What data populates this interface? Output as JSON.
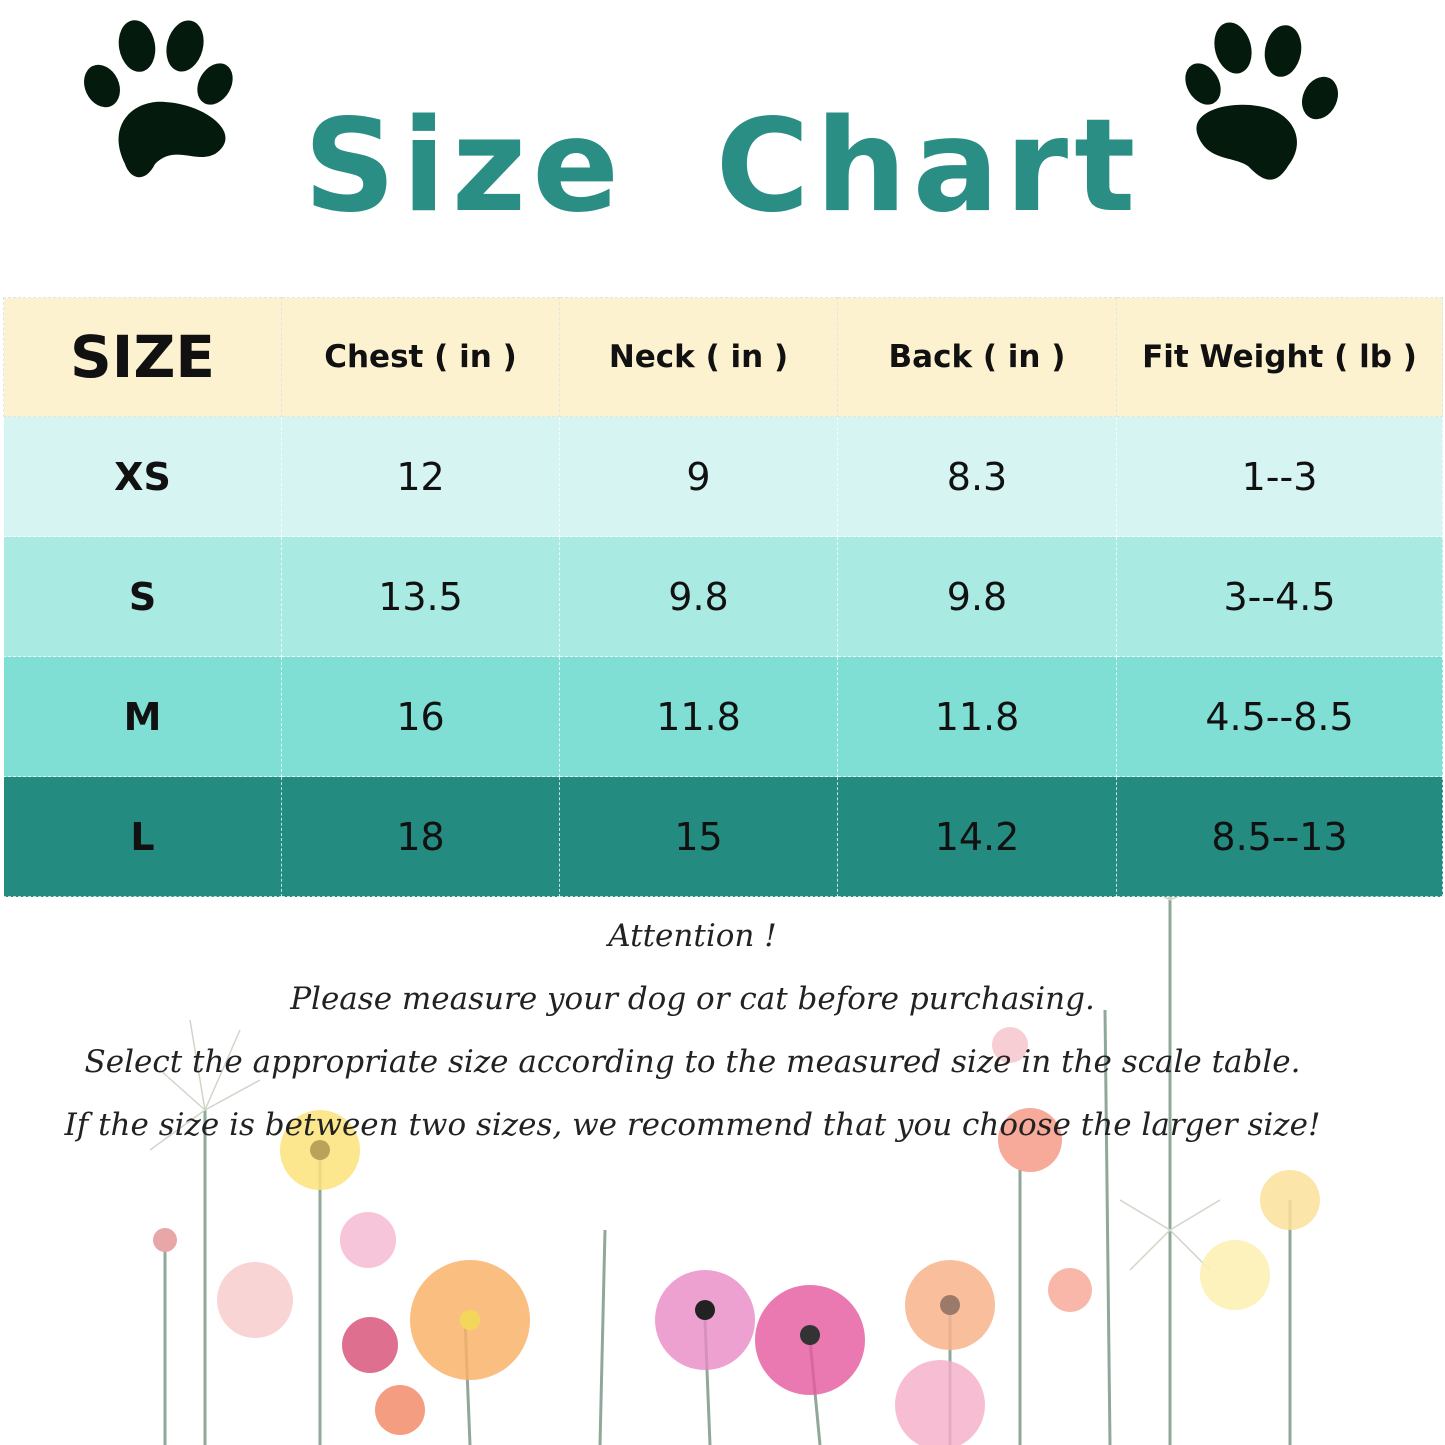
{
  "title": "Size Chart",
  "colors": {
    "title": "#2a8e84",
    "header_bg": "#fdf2d0",
    "xs_bg": "#d5f4f2",
    "s_bg": "#a9eae3",
    "m_bg": "#7fdfd5",
    "l_bg": "#238b80"
  },
  "icons": [
    "paw-print-icon",
    "paw-print-icon"
  ],
  "table": {
    "headers": [
      "SIZE",
      "Chest ( in )",
      "Neck ( in )",
      "Back ( in )",
      "Fit  Weight ( lb )"
    ],
    "rows": [
      [
        "XS",
        "12",
        "9",
        "8.3",
        "1--3"
      ],
      [
        "S",
        "13.5",
        "9.8",
        "9.8",
        "3--4.5"
      ],
      [
        "M",
        "16",
        "11.8",
        "11.8",
        "4.5--8.5"
      ],
      [
        "L",
        "18",
        "15",
        "14.2",
        "8.5--13"
      ]
    ]
  },
  "notes": [
    "Attention !",
    "Please measure your dog or cat before purchasing.",
    "Select the appropriate size according to the measured size in the scale table.",
    "If the size is between two sizes, we recommend that you choose the larger size!"
  ]
}
